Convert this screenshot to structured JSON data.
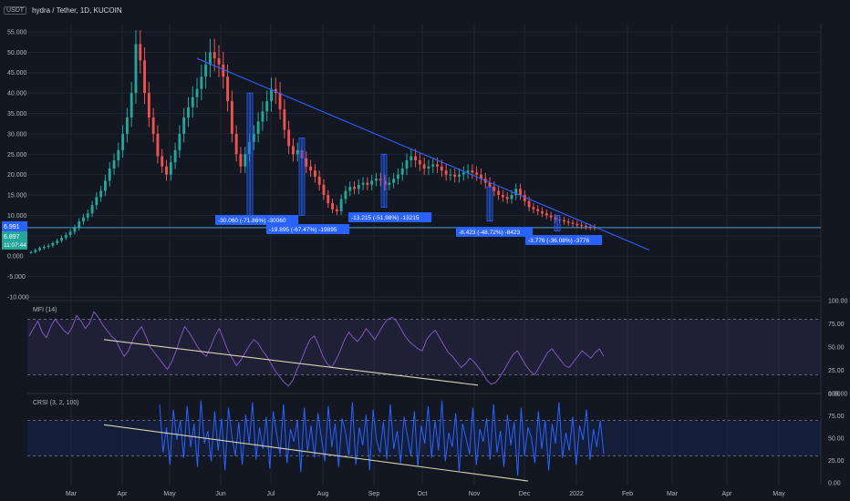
{
  "header": {
    "currency_badge": "USDT",
    "symbol_info": "hydra / Tether, 1D, KUCOIN"
  },
  "colors": {
    "bg": "#131722",
    "grid": "#1f2430",
    "up": "#26a69a",
    "down": "#ef5350",
    "trend": "#2962ff",
    "support": "#4aa0d8",
    "mfi_line": "#7e57c2",
    "crsi_line": "#2962ff",
    "channel": "#d8d4b0",
    "label_bg": "#2962ff"
  },
  "chart_data": [
    {
      "type": "candlestick",
      "title": "hydra / Tether, 1D, KUCOIN",
      "x_ticks": [
        "Mar",
        "Apr",
        "May",
        "Jun",
        "Jul",
        "Aug",
        "Sep",
        "Oct",
        "Nov",
        "Dec",
        "2022",
        "Feb",
        "Mar",
        "Apr",
        "May"
      ],
      "y_ticks": [
        "55.000",
        "50.000",
        "45.000",
        "40.000",
        "35.000",
        "30.000",
        "25.000",
        "20.000",
        "15.000",
        "10.000",
        "5.000",
        "0.000",
        "-5.000",
        "-10.000"
      ],
      "ylim": [
        -10,
        57
      ],
      "price_labels": [
        {
          "text": "6.991",
          "color": "#2962ff"
        },
        {
          "text": "6.897\n11:07:44",
          "color": "#26a69a"
        }
      ],
      "close_approx": [
        1.0,
        1.5,
        2.0,
        2.3,
        2.6,
        3.2,
        3.8,
        4.5,
        5.2,
        6.0,
        7.0,
        8.5,
        9.5,
        10.5,
        12.5,
        14.5,
        16.0,
        18.5,
        21.5,
        23.5,
        26.0,
        30.0,
        34.0,
        40.0,
        52.0,
        48.0,
        40.0,
        34.0,
        30.0,
        24.5,
        22.0,
        20.0,
        23.0,
        26.0,
        30.0,
        34.0,
        36.5,
        39.0,
        41.0,
        44.0,
        47.0,
        50.0,
        48.5,
        47.0,
        44.0,
        38.0,
        30.0,
        25.0,
        22.0,
        25.0,
        28.0,
        30.0,
        33.0,
        35.5,
        38.0,
        41.0,
        40.0,
        36.0,
        31.0,
        27.0,
        25.0,
        26.0,
        24.0,
        22.0,
        21.0,
        19.5,
        17.5,
        15.0,
        13.0,
        11.5,
        11.0,
        14.0,
        16.0,
        17.0,
        16.5,
        17.5,
        18.0,
        17.5,
        18.5,
        19.0,
        18.5,
        17.5,
        18.0,
        19.0,
        20.0,
        21.5,
        23.5,
        24.5,
        23.5,
        22.5,
        21.5,
        22.0,
        22.5,
        22.0,
        21.0,
        20.0,
        20.0,
        19.5,
        20.0,
        20.5,
        21.0,
        20.5,
        20.0,
        19.0,
        18.0,
        17.0,
        16.0,
        15.0,
        14.5,
        14.0,
        15.0,
        16.5,
        15.0,
        13.5,
        12.0,
        11.5,
        11.0,
        10.5,
        10.0,
        9.5,
        9.0,
        8.8,
        8.5,
        8.2,
        7.9,
        7.6,
        7.4,
        7.2,
        7.1,
        6.99
      ],
      "trendline": {
        "from": [
          "May",
          48.5
        ],
        "to": [
          "Feb",
          1.5
        ]
      },
      "support_level": 6.99,
      "measure_labels": [
        "-30.060 (-71.86%) -30060",
        "-19.895 (-67.47%) -19895",
        "-13.215 (-51.98%) -13215",
        "-8.423 (-48.72%) -8423",
        "-3.776 (-36.08%) -3776"
      ]
    },
    {
      "type": "line",
      "title": "MFI (14)",
      "y_ticks": [
        "100.00",
        "75.00",
        "50.00",
        "25.00",
        "0.00"
      ],
      "ylim": [
        0,
        100
      ],
      "bands": [
        20,
        80
      ],
      "values": [
        62,
        70,
        78,
        66,
        60,
        72,
        80,
        74,
        68,
        64,
        72,
        84,
        78,
        70,
        76,
        88,
        82,
        74,
        68,
        62,
        58,
        48,
        40,
        46,
        58,
        66,
        72,
        62,
        50,
        44,
        38,
        32,
        26,
        34,
        46,
        60,
        72,
        66,
        58,
        50,
        44,
        40,
        50,
        62,
        70,
        58,
        46,
        38,
        30,
        36,
        44,
        52,
        58,
        54,
        46,
        40,
        32,
        24,
        18,
        12,
        8,
        14,
        26,
        36,
        48,
        58,
        62,
        52,
        40,
        32,
        28,
        36,
        46,
        58,
        66,
        60,
        56,
        62,
        70,
        64,
        58,
        66,
        74,
        80,
        82,
        78,
        70,
        62,
        56,
        52,
        48,
        46,
        58,
        64,
        68,
        60,
        52,
        44,
        40,
        34,
        28,
        32,
        38,
        34,
        28,
        22,
        14,
        10,
        12,
        18,
        26,
        34,
        42,
        46,
        38,
        30,
        24,
        20,
        28,
        36,
        44,
        48,
        42,
        36,
        30,
        28,
        34,
        40,
        46,
        42,
        38,
        44,
        48,
        40
      ],
      "channel_line": {
        "from": [
          "Nov",
          9
        ],
        "to": [
          "Apr",
          58
        ]
      }
    },
    {
      "type": "line",
      "title": "CRSI (3, 2, 100)",
      "y_ticks": [
        "100.00",
        "75.00",
        "50.00",
        "25.00",
        "0.00"
      ],
      "ylim": [
        0,
        100
      ],
      "bands": [
        30,
        70
      ],
      "values": [
        88,
        34,
        62,
        20,
        82,
        48,
        70,
        28,
        86,
        40,
        66,
        18,
        92,
        44,
        58,
        24,
        80,
        36,
        72,
        14,
        84,
        52,
        30,
        68,
        20,
        76,
        44,
        90,
        26,
        62,
        38,
        74,
        16,
        80,
        54,
        32,
        88,
        22,
        60,
        46,
        70,
        12,
        84,
        36,
        64,
        28,
        78,
        50,
        24,
        86,
        40,
        66,
        18,
        72,
        56,
        30,
        90,
        20,
        62,
        42,
        76,
        14,
        82,
        48,
        34,
        68,
        26,
        88,
        38,
        58,
        22,
        74,
        52,
        30,
        80,
        18,
        64,
        44,
        86,
        28,
        70,
        36,
        92,
        24,
        56,
        40,
        78,
        12,
        66,
        50,
        32,
        84,
        20,
        60,
        46,
        72,
        26,
        88,
        34,
        58,
        18,
        76,
        42,
        68,
        8,
        84,
        30,
        62,
        50,
        22,
        80,
        38,
        70,
        14,
        66,
        44,
        90,
        28,
        56,
        36,
        74,
        20,
        64,
        48,
        82,
        26,
        60,
        40,
        70,
        32
      ],
      "channel_line": {
        "from": [
          "Dec",
          2
        ],
        "to": [
          "Apr",
          65
        ]
      }
    }
  ]
}
